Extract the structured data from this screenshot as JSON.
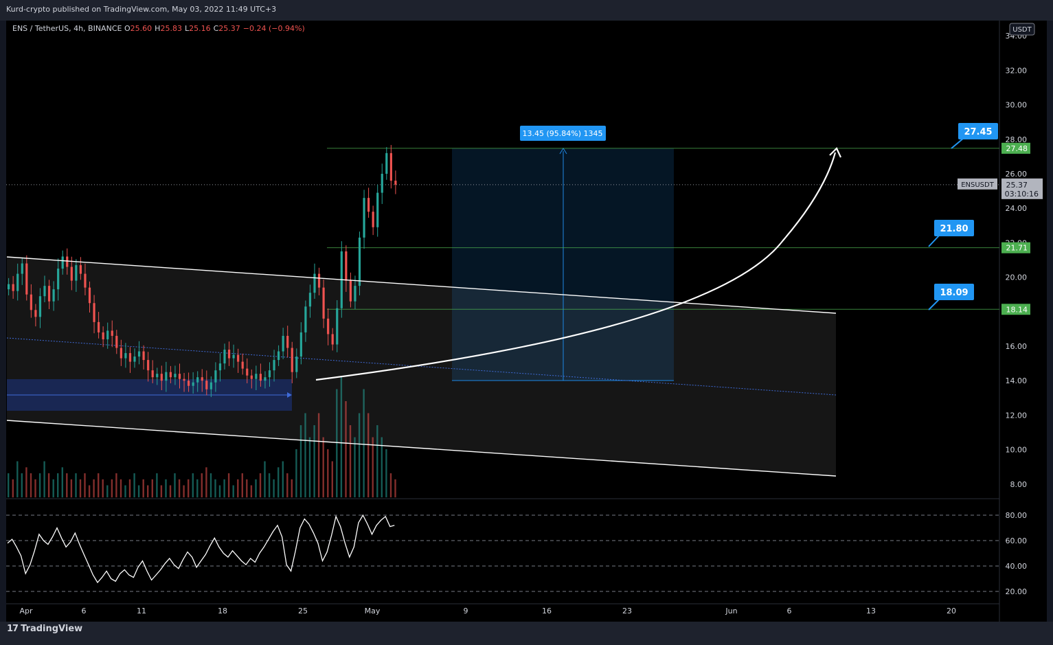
{
  "header": {
    "published": "Kurd-crypto published on TradingView.com, May 03, 2022 11:49 UTC+3"
  },
  "legend": {
    "symbol": "ENS / TetherUS, 4h, BINANCE",
    "open_label": "O",
    "open": "25.60",
    "high_label": "H",
    "high": "25.83",
    "low_label": "L",
    "low": "25.16",
    "close_label": "C",
    "close": "25.37",
    "change": "−0.24 (−0.94%)"
  },
  "price_axis": {
    "currency": "USDT",
    "ticks": [
      "34.00",
      "32.00",
      "30.00",
      "28.00",
      "26.00",
      "24.00",
      "22.00",
      "20.00",
      "18.00",
      "16.00",
      "14.00",
      "12.00",
      "10.00",
      "8.00"
    ],
    "last_symbol": "ENSUSDT",
    "last_price": "25.37",
    "countdown": "03:10:16",
    "level_tags": [
      "27.48",
      "21.71",
      "18.14"
    ]
  },
  "rsi_axis": {
    "ticks": [
      "80.00",
      "60.00",
      "40.00",
      "20.00"
    ]
  },
  "time_axis": {
    "ticks": [
      "Apr",
      "6",
      "11",
      "18",
      "25",
      "May",
      "9",
      "16",
      "23",
      "Jun",
      "6",
      "13",
      "20"
    ]
  },
  "measure_label": "13.45 (95.84%) 1345",
  "callouts": [
    "27.45",
    "21.80",
    "18.09"
  ],
  "footer": {
    "logo_mark": "17",
    "logo_text": "TradingView"
  },
  "colors": {
    "background": "#000000",
    "up": "#26a69a",
    "down": "#ef5350",
    "callout": "#2196f3",
    "level_tag": "#4caf50",
    "measure_box": "#1e88e5"
  },
  "chart_data": {
    "type": "candlestick",
    "symbol": "ENSUSDT",
    "timeframe": "4h",
    "exchange": "BINANCE",
    "ylim": [
      7.5,
      34.5
    ],
    "horizontal_levels": [
      27.48,
      21.71,
      18.14
    ],
    "measured_move": {
      "from": 14.0,
      "to": 27.45,
      "change": 13.45,
      "percent": 95.84,
      "bars": 1345
    },
    "targets": [
      27.45,
      21.8,
      18.09
    ],
    "price_path_closes": [
      19.6,
      19.2,
      20.2,
      20.8,
      19.0,
      18.1,
      17.7,
      18.9,
      19.5,
      18.6,
      19.3,
      20.5,
      21.2,
      20.6,
      19.8,
      20.7,
      20.2,
      19.4,
      18.5,
      17.4,
      16.8,
      16.4,
      16.9,
      16.6,
      15.9,
      15.3,
      15.6,
      15.1,
      15.4,
      15.7,
      15.2,
      14.6,
      14.2,
      14.4,
      14.0,
      14.5,
      14.2,
      14.4,
      14.1,
      14.0,
      13.7,
      13.9,
      14.2,
      14.0,
      13.5,
      13.9,
      14.6,
      15.0,
      15.8,
      15.3,
      15.5,
      15.1,
      14.7,
      14.3,
      14.1,
      14.4,
      14.0,
      14.2,
      14.6,
      15.2,
      15.7,
      16.6,
      15.9,
      14.5,
      15.4,
      16.8,
      18.3,
      19.1,
      20.2,
      19.4,
      17.6,
      16.7,
      16.1,
      18.2,
      21.5,
      19.8,
      18.6,
      19.5,
      22.3,
      24.6,
      23.8,
      22.9,
      24.9,
      26.0,
      27.2,
      25.6,
      25.37
    ],
    "rsi_values": [
      58,
      61,
      55,
      48,
      34,
      41,
      52,
      65,
      60,
      57,
      63,
      70,
      62,
      55,
      59,
      66,
      57,
      49,
      41,
      33,
      27,
      31,
      36,
      30,
      28,
      34,
      37,
      33,
      31,
      39,
      44,
      36,
      29,
      33,
      37,
      42,
      46,
      41,
      38,
      45,
      51,
      47,
      39,
      44,
      49,
      56,
      62,
      55,
      50,
      47,
      52,
      48,
      44,
      41,
      46,
      43,
      50,
      55,
      61,
      67,
      72,
      63,
      41,
      36,
      52,
      70,
      77,
      73,
      66,
      58,
      44,
      51,
      64,
      79,
      71,
      58,
      47,
      55,
      74,
      80,
      73,
      65,
      72,
      76,
      79,
      71,
      72
    ],
    "rsi_levels": [
      80,
      60,
      40,
      20
    ],
    "volume_relative": [
      0.2,
      0.15,
      0.3,
      0.2,
      0.25,
      0.2,
      0.15,
      0.2,
      0.3,
      0.2,
      0.15,
      0.2,
      0.25,
      0.2,
      0.15,
      0.2,
      0.15,
      0.2,
      0.1,
      0.15,
      0.2,
      0.15,
      0.1,
      0.15,
      0.2,
      0.15,
      0.1,
      0.15,
      0.2,
      0.1,
      0.15,
      0.1,
      0.15,
      0.2,
      0.1,
      0.15,
      0.1,
      0.2,
      0.15,
      0.1,
      0.15,
      0.2,
      0.15,
      0.2,
      0.25,
      0.2,
      0.15,
      0.1,
      0.15,
      0.2,
      0.1,
      0.15,
      0.2,
      0.15,
      0.1,
      0.15,
      0.2,
      0.3,
      0.2,
      0.15,
      0.25,
      0.3,
      0.2,
      0.15,
      0.4,
      0.6,
      0.7,
      0.5,
      0.6,
      0.7,
      0.5,
      0.4,
      0.3,
      0.9,
      1.0,
      0.8,
      0.6,
      0.5,
      0.7,
      0.9,
      0.7,
      0.5,
      0.6,
      0.5,
      0.4,
      0.2,
      0.15
    ]
  }
}
